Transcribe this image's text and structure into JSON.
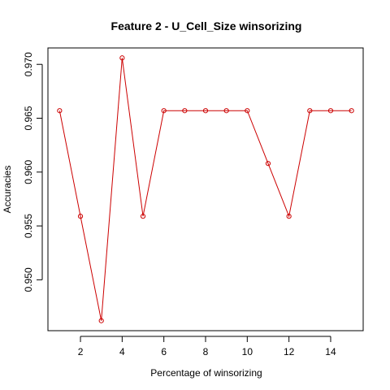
{
  "chart_data": {
    "type": "line",
    "title": "Feature 2 - U_Cell_Size winsorizing",
    "xlabel": "Percentage of winsorizing",
    "ylabel": "Accuracies",
    "x": [
      1,
      2,
      3,
      4,
      5,
      6,
      7,
      8,
      9,
      10,
      11,
      12,
      13,
      14,
      15
    ],
    "series": [
      {
        "values": [
          0.9657,
          0.9559,
          0.9462,
          0.9706,
          0.9559,
          0.9657,
          0.9657,
          0.9657,
          0.9657,
          0.9657,
          0.9608,
          0.9559,
          0.9657,
          0.9657,
          0.9657
        ],
        "color": "#cc0000"
      }
    ],
    "xlim": [
      0.44,
      15.56
    ],
    "ylim": [
      0.945275,
      0.971525
    ],
    "xticks": [
      2,
      4,
      6,
      8,
      10,
      12,
      14
    ],
    "yticks": [
      0.95,
      0.955,
      0.96,
      0.965,
      0.97
    ],
    "ytick_labels": [
      "0.950",
      "0.955",
      "0.960",
      "0.965",
      "0.970"
    ],
    "grid": false,
    "legend": "none"
  }
}
